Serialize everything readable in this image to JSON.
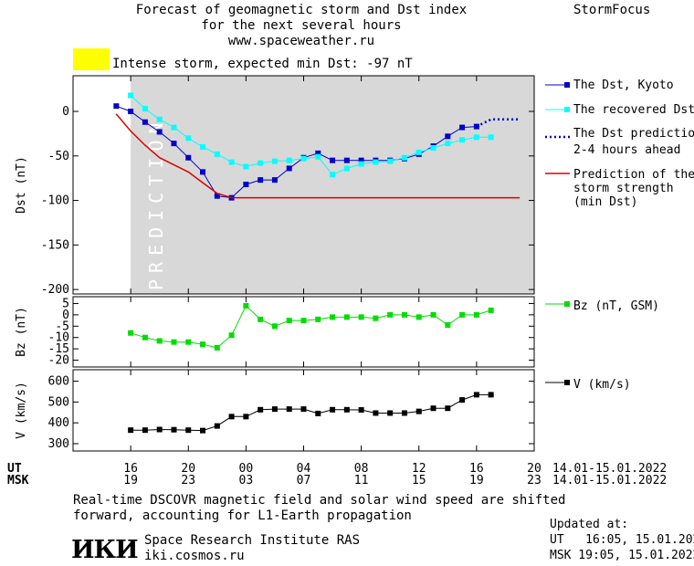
{
  "header": {
    "title_lines": [
      "Forecast of geomagnetic storm and Dst index",
      "for the next several hours",
      "www.spaceweather.ru"
    ],
    "brand": "StormFocus",
    "alert_text": "Intense storm, expected min Dst: -97 nT",
    "alert_color": "#ffff00"
  },
  "footer": {
    "note_lines": [
      "Real-time DSCOVR magnetic field and solar wind speed are shifted",
      "forward, accounting for L1-Earth propagation"
    ],
    "logo_text": "ИКИ",
    "institute": "Space Research Institute RAS",
    "site": "iki.cosmos.ru",
    "updated_label": "Updated at:",
    "updated_ut": "UT   16:05, 15.01.2022",
    "updated_msk": "MSK 19:05, 15.01.2022"
  },
  "time_axis": {
    "ut_label": "UT",
    "msk_label": "MSK",
    "ut_ticks": [
      "16",
      "20",
      "00",
      "04",
      "08",
      "12",
      "16",
      "20"
    ],
    "msk_ticks": [
      "19",
      "23",
      "03",
      "07",
      "11",
      "15",
      "19",
      "23"
    ],
    "date_range": "14.01-15.01.2022"
  },
  "colors": {
    "dst_kyoto": "#0000cc",
    "dst_recovered": "#00ffff",
    "dst_prediction": "#0000cc",
    "storm_strength": "#dd0000",
    "bz": "#00dd00",
    "v": "#000000",
    "prediction_band": "#d8d8d8"
  },
  "chart_data": [
    {
      "type": "line",
      "ylabel": "Dst (nT)",
      "ylim": [
        -205,
        40
      ],
      "yticks": [
        0,
        -50,
        -100,
        -150,
        -200
      ],
      "prediction_label": "PREDICTION",
      "prediction_start_hour": 16,
      "series": [
        {
          "name": "The Dst, Kyoto",
          "x": [
            15,
            16,
            17,
            18,
            19,
            20,
            21,
            22,
            23,
            24,
            25,
            26,
            27,
            28,
            29,
            30,
            31,
            32,
            33,
            34,
            35,
            36,
            37,
            38,
            39,
            40
          ],
          "values": [
            6,
            0,
            -12,
            -23,
            -36,
            -52,
            -68,
            -95,
            -97,
            -82,
            -77,
            -77,
            -64,
            -52,
            -47,
            -55,
            -55,
            -55,
            -55,
            -55,
            -53,
            -48,
            -39,
            -28,
            -18,
            -17
          ]
        },
        {
          "name": "The recovered Dst",
          "x": [
            16,
            17,
            18,
            19,
            20,
            21,
            22,
            23,
            24,
            25,
            26,
            27,
            28,
            29,
            30,
            31,
            32,
            33,
            34,
            35,
            36,
            37,
            38,
            39,
            40,
            41
          ],
          "values": [
            18,
            3,
            -9,
            -18,
            -30,
            -40,
            -48,
            -57,
            -62,
            -58,
            -56,
            -55,
            -53,
            -51,
            -71,
            -64,
            -59,
            -57,
            -56,
            -52,
            -46,
            -41,
            -36,
            -32,
            -29,
            -29
          ]
        },
        {
          "name": "The Dst prediction 2-4 hours ahead",
          "x": [
            40,
            41,
            42,
            43
          ],
          "values": [
            -17,
            -9,
            -9,
            -9
          ]
        },
        {
          "name": "Prediction of the storm strength (min Dst)",
          "x": [
            15,
            16,
            17,
            18,
            19,
            20,
            21,
            22,
            23,
            43
          ],
          "values": [
            -3,
            -22,
            -38,
            -52,
            -60,
            -68,
            -80,
            -92,
            -97,
            -97
          ]
        }
      ]
    },
    {
      "type": "line",
      "ylabel": "Bz (nT)",
      "ylim": [
        -23,
        8
      ],
      "yticks": [
        5,
        0,
        -5,
        -10,
        -15,
        -20
      ],
      "ytick_labels": [
        "5",
        "0",
        "-5",
        "-10",
        "-15",
        "-20"
      ],
      "series": [
        {
          "name": "Bz (nT, GSM)",
          "x": [
            16,
            17,
            18,
            19,
            20,
            21,
            22,
            23,
            24,
            25,
            26,
            27,
            28,
            29,
            30,
            31,
            32,
            33,
            34,
            35,
            36,
            37,
            38,
            39,
            40,
            41
          ],
          "values": [
            -8,
            -10,
            -11.5,
            -12,
            -12,
            -13,
            -14.5,
            -9,
            4,
            -2,
            -5,
            -2.5,
            -2.5,
            -2,
            -1,
            -1,
            -1,
            -1.5,
            0,
            0,
            -1,
            0,
            -4.5,
            0,
            0,
            2
          ]
        }
      ]
    },
    {
      "type": "line",
      "ylabel": "V (km/s)",
      "ylim": [
        265,
        655
      ],
      "yticks": [
        600,
        500,
        400,
        300
      ],
      "series": [
        {
          "name": "V (km/s)",
          "x": [
            16,
            17,
            18,
            19,
            20,
            21,
            22,
            23,
            24,
            25,
            26,
            27,
            28,
            29,
            30,
            31,
            32,
            33,
            34,
            35,
            36,
            37,
            38,
            39,
            40,
            41
          ],
          "values": [
            365,
            365,
            368,
            367,
            365,
            363,
            385,
            430,
            430,
            463,
            466,
            466,
            466,
            445,
            463,
            463,
            462,
            447,
            447,
            447,
            455,
            470,
            470,
            510,
            535,
            535
          ]
        }
      ]
    }
  ]
}
